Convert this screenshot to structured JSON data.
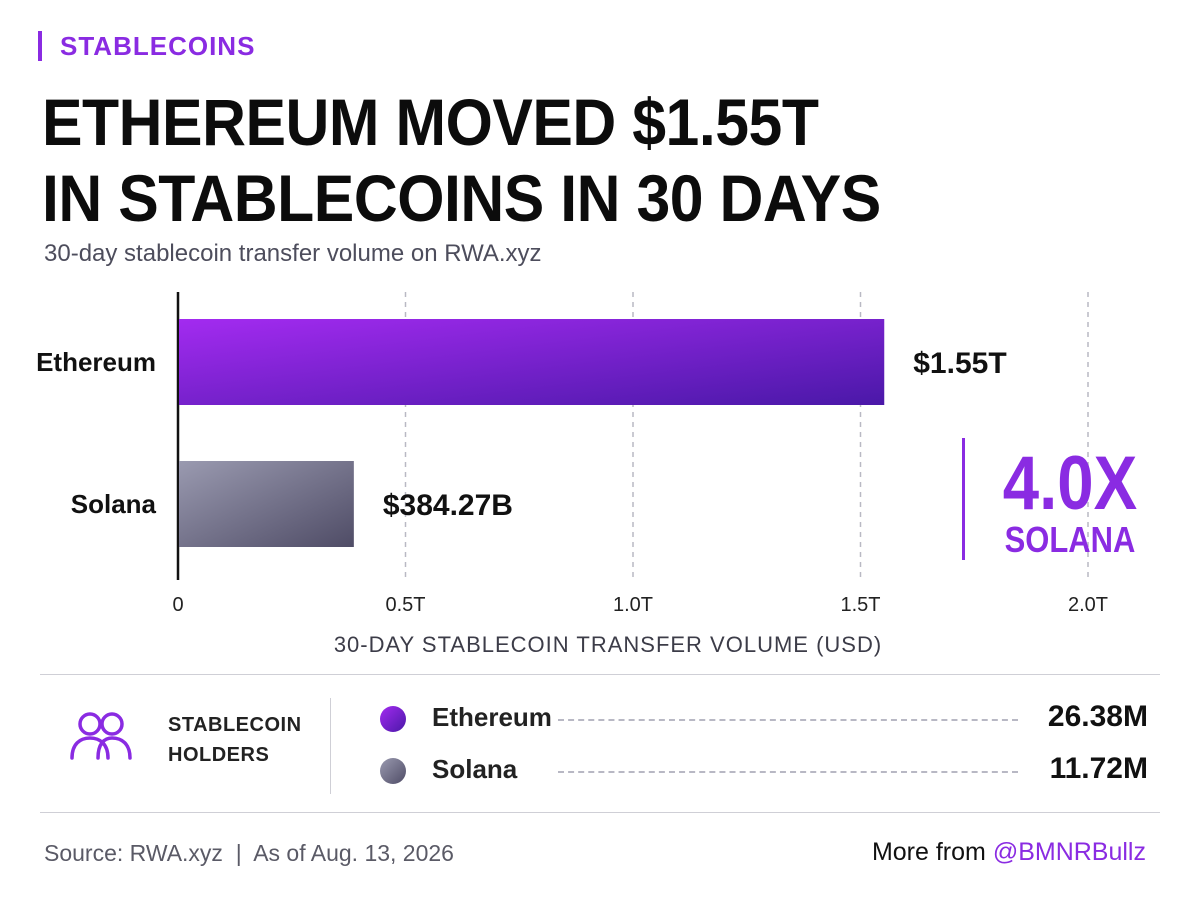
{
  "kicker": "STABLECOINS",
  "headline": {
    "line1": "ETHEREUM MOVED $1.55T",
    "line2": "IN STABLECOINS IN 30 DAYS"
  },
  "subtitle": "30-day stablecoin transfer volume on RWA.xyz",
  "colors": {
    "accent": "#8a2be2",
    "ethereum_bar_start": "#a32bf0",
    "ethereum_bar_end": "#4a18a8",
    "solana_bar_start": "#9a9ab0",
    "solana_bar_end": "#4f4c66",
    "grid": "#b9b9c4"
  },
  "chart_data": {
    "type": "bar",
    "orientation": "horizontal",
    "categories": [
      "Ethereum",
      "Solana"
    ],
    "values": [
      1.55,
      0.38427
    ],
    "units": "USD trillions",
    "value_labels": [
      "$1.55T",
      "$384.27B"
    ],
    "xlim": [
      0,
      2.0
    ],
    "xticks": [
      0,
      0.5,
      1.0,
      1.5,
      2.0
    ],
    "xtick_labels": [
      "0",
      "0.5T",
      "1.0T",
      "1.5T",
      "2.0T"
    ],
    "xlabel": "30-DAY STABLECOIN TRANSFER VOLUME (USD)",
    "grid": "vertical dashed"
  },
  "multiplier": {
    "value": "4.0X",
    "label": "SOLANA"
  },
  "holders": {
    "icon": "users-icon",
    "title_line1": "STABLECOIN",
    "title_line2": "HOLDERS",
    "rows": [
      {
        "name": "Ethereum",
        "value": "26.38M"
      },
      {
        "name": "Solana",
        "value": "11.72M"
      }
    ]
  },
  "footer": {
    "source": "Source: RWA.xyz  |  As of Aug. 13, 2026",
    "credit_prefix": "More from ",
    "credit_handle": "@BMNRBullz"
  }
}
